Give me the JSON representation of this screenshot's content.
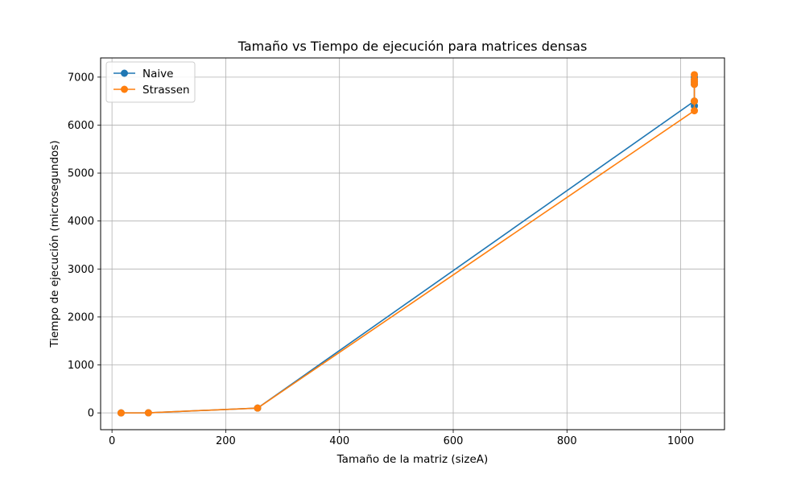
{
  "chart_data": {
    "type": "line",
    "title": "Tamaño vs Tiempo de ejecución para matrices densas",
    "xlabel": "Tamaño de la matriz (sizeA)",
    "ylabel": "Tiempo de ejecución (microsegundos)",
    "xlim": [
      -20,
      1077
    ],
    "ylim": [
      -350,
      7400
    ],
    "xticks": [
      0,
      200,
      400,
      600,
      800,
      1000
    ],
    "yticks": [
      0,
      1000,
      2000,
      3000,
      4000,
      5000,
      6000,
      7000
    ],
    "grid": true,
    "legend_position": "top-left",
    "series": [
      {
        "name": "Naive",
        "color": "#1f77b4",
        "x": [
          16,
          64,
          256,
          1024,
          1024,
          1024,
          1024,
          1024,
          1024
        ],
        "y": [
          0,
          2,
          100,
          6500,
          6400,
          6850,
          6900,
          6950,
          7000
        ]
      },
      {
        "name": "Strassen",
        "color": "#ff7f0e",
        "x": [
          16,
          64,
          256,
          1024,
          1024,
          1024,
          1024,
          1024,
          1024
        ],
        "y": [
          0,
          2,
          100,
          6300,
          6500,
          6850,
          6900,
          6950,
          7050
        ]
      }
    ]
  }
}
